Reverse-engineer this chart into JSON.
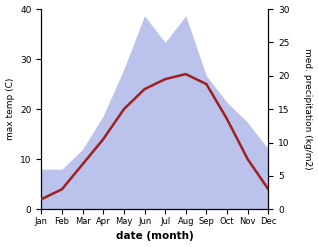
{
  "months": [
    "Jan",
    "Feb",
    "Mar",
    "Apr",
    "May",
    "Jun",
    "Jul",
    "Aug",
    "Sep",
    "Oct",
    "Nov",
    "Dec"
  ],
  "temperature": [
    2,
    4,
    9,
    14,
    20,
    24,
    26,
    27,
    25,
    18,
    10,
    4
  ],
  "precipitation": [
    6,
    6,
    9,
    14,
    21,
    29,
    25,
    29,
    20,
    16,
    13,
    9
  ],
  "temp_color": "#a02020",
  "precip_color_fill": "#b0b8e8",
  "left_ylim": [
    0,
    40
  ],
  "right_ylim": [
    0,
    30
  ],
  "left_yticks": [
    0,
    10,
    20,
    30,
    40
  ],
  "right_yticks": [
    0,
    5,
    10,
    15,
    20,
    25,
    30
  ],
  "xlabel": "date (month)",
  "ylabel_left": "max temp (C)",
  "ylabel_right": "med. precipitation (kg/m2)",
  "line_width": 1.8,
  "figsize": [
    3.18,
    2.47
  ],
  "dpi": 100
}
